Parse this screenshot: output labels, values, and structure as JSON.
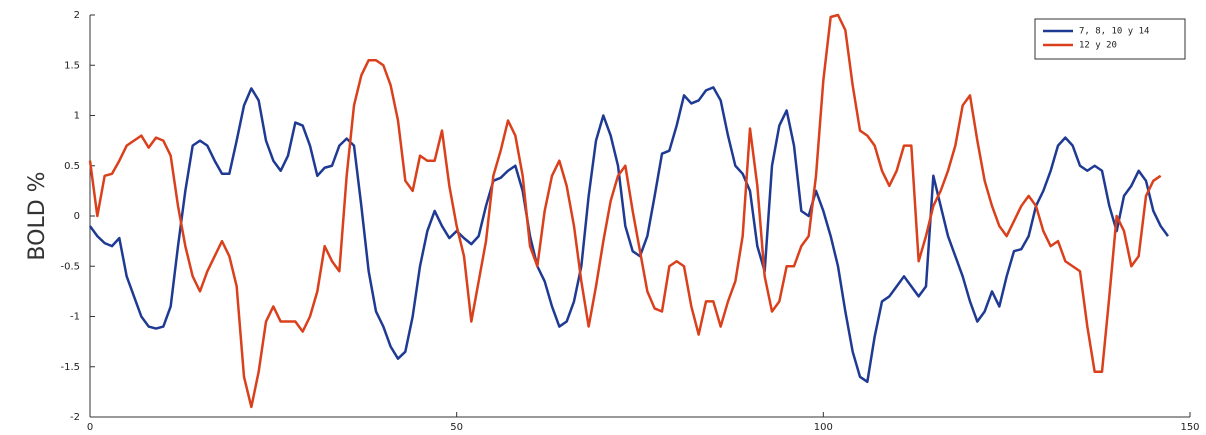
{
  "chart_data": {
    "type": "line",
    "y_label": "BOLD %",
    "x": [
      0,
      1,
      2,
      3,
      4,
      5,
      6,
      7,
      8,
      9,
      10,
      11,
      12,
      13,
      14,
      15,
      16,
      17,
      18,
      19,
      20,
      21,
      22,
      23,
      24,
      25,
      26,
      27,
      28,
      29,
      30,
      31,
      32,
      33,
      34,
      35,
      36,
      37,
      38,
      39,
      40,
      41,
      42,
      43,
      44,
      45,
      46,
      47,
      48,
      49,
      50,
      51,
      52,
      53,
      54,
      55,
      56,
      57,
      58,
      59,
      60,
      61,
      62,
      63,
      64,
      65,
      66,
      67,
      68,
      69,
      70,
      71,
      72,
      73,
      74,
      75,
      76,
      77,
      78,
      79,
      80,
      81,
      82,
      83,
      84,
      85,
      86,
      87,
      88,
      89,
      90,
      91,
      92,
      93,
      94,
      95,
      96,
      97,
      98,
      99,
      100,
      101,
      102,
      103,
      104,
      105,
      106,
      107,
      108,
      109,
      110,
      111,
      112,
      113,
      114,
      115,
      116,
      117,
      118,
      119,
      120,
      121,
      122,
      123,
      124,
      125,
      126,
      127,
      128,
      129,
      130,
      131,
      132,
      133,
      134,
      135,
      136,
      137,
      138,
      139,
      140,
      141,
      142,
      143,
      144,
      145,
      146,
      147
    ],
    "series": [
      {
        "name": "7, 8, 10 y 14",
        "color": "#1f3a93",
        "values": [
          -0.1,
          -0.2,
          -0.27,
          -0.3,
          -0.22,
          -0.6,
          -0.8,
          -1.0,
          -1.1,
          -1.12,
          -1.1,
          -0.9,
          -0.3,
          0.25,
          0.7,
          0.75,
          0.7,
          0.55,
          0.42,
          0.42,
          0.75,
          1.1,
          1.27,
          1.15,
          0.75,
          0.55,
          0.45,
          0.6,
          0.93,
          0.9,
          0.7,
          0.4,
          0.48,
          0.5,
          0.7,
          0.77,
          0.7,
          0.1,
          -0.55,
          -0.95,
          -1.1,
          -1.3,
          -1.42,
          -1.35,
          -1.0,
          -0.5,
          -0.15,
          0.05,
          -0.1,
          -0.22,
          -0.15,
          -0.22,
          -0.28,
          -0.2,
          0.1,
          0.35,
          0.38,
          0.45,
          0.5,
          0.25,
          -0.2,
          -0.5,
          -0.65,
          -0.9,
          -1.1,
          -1.05,
          -0.85,
          -0.5,
          0.2,
          0.75,
          1.0,
          0.8,
          0.5,
          -0.1,
          -0.35,
          -0.4,
          -0.2,
          0.2,
          0.62,
          0.65,
          0.9,
          1.2,
          1.12,
          1.15,
          1.25,
          1.28,
          1.15,
          0.8,
          0.5,
          0.42,
          0.25,
          -0.3,
          -0.55,
          0.5,
          0.9,
          1.05,
          0.7,
          0.05,
          0.0,
          0.25,
          0.05,
          -0.2,
          -0.5,
          -0.95,
          -1.35,
          -1.6,
          -1.65,
          -1.2,
          -0.85,
          -0.8,
          -0.7,
          -0.6,
          -0.7,
          -0.8,
          -0.7,
          0.4,
          0.1,
          -0.2,
          -0.4,
          -0.6,
          -0.85,
          -1.05,
          -0.95,
          -0.75,
          -0.9,
          -0.6,
          -0.35,
          -0.33,
          -0.2,
          0.1,
          0.25,
          0.45,
          0.7,
          0.78,
          0.7,
          0.5,
          0.45,
          0.5,
          0.45,
          0.1,
          -0.15,
          0.2,
          0.3,
          0.45,
          0.35,
          0.05,
          -0.1,
          -0.2
        ]
      },
      {
        "name": "12 y 20",
        "color": "#d9401b",
        "values": [
          0.55,
          0.0,
          0.4,
          0.42,
          0.55,
          0.7,
          0.75,
          0.8,
          0.68,
          0.78,
          0.75,
          0.6,
          0.1,
          -0.3,
          -0.6,
          -0.75,
          -0.55,
          -0.4,
          -0.25,
          -0.4,
          -0.7,
          -1.6,
          -1.9,
          -1.55,
          -1.05,
          -0.9,
          -1.05,
          -1.05,
          -1.05,
          -1.15,
          -1.0,
          -0.75,
          -0.3,
          -0.45,
          -0.55,
          0.4,
          1.1,
          1.4,
          1.55,
          1.55,
          1.5,
          1.3,
          0.95,
          0.35,
          0.25,
          0.6,
          0.55,
          0.55,
          0.85,
          0.3,
          -0.1,
          -0.4,
          -1.05,
          -0.65,
          -0.25,
          0.4,
          0.65,
          0.95,
          0.8,
          0.4,
          -0.3,
          -0.5,
          0.05,
          0.4,
          0.55,
          0.3,
          -0.1,
          -0.65,
          -1.1,
          -0.7,
          -0.25,
          0.15,
          0.4,
          0.5,
          0.05,
          -0.35,
          -0.75,
          -0.92,
          -0.95,
          -0.5,
          -0.45,
          -0.5,
          -0.9,
          -1.18,
          -0.85,
          -0.85,
          -1.1,
          -0.85,
          -0.65,
          -0.2,
          0.87,
          0.3,
          -0.6,
          -0.95,
          -0.85,
          -0.5,
          -0.5,
          -0.3,
          -0.2,
          0.4,
          1.35,
          1.98,
          2.0,
          1.85,
          1.3,
          0.85,
          0.8,
          0.7,
          0.45,
          0.3,
          0.45,
          0.7,
          0.7,
          -0.45,
          -0.2,
          0.1,
          0.25,
          0.45,
          0.7,
          1.1,
          1.2,
          0.75,
          0.35,
          0.1,
          -0.1,
          -0.2,
          -0.05,
          0.1,
          0.2,
          0.1,
          -0.15,
          -0.3,
          -0.25,
          -0.45,
          -0.5,
          -0.55,
          -1.1,
          -1.55,
          -1.55,
          -0.8,
          0.0,
          -0.15,
          -0.5,
          -0.4,
          0.2,
          0.35,
          0.4,
          null
        ]
      }
    ],
    "xlim": [
      0,
      150
    ],
    "xticks": [
      0,
      50,
      100,
      150
    ],
    "ylim": [
      -2,
      2
    ],
    "yticks": [
      -2,
      {
        "value": -1.5,
        "label": "-1.5"
      },
      -1,
      {
        "value": -0.5,
        "label": "-0.5"
      },
      0,
      0.5,
      1,
      1.5,
      2
    ],
    "legend": "upper right"
  }
}
